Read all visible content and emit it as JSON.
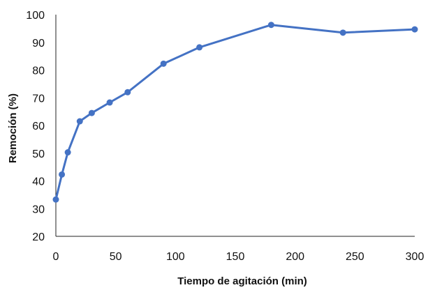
{
  "chart_data": {
    "type": "line",
    "title": "",
    "xlabel": "Tiempo de agitación (min)",
    "ylabel": "Remoción (%)",
    "xlim": [
      0,
      300
    ],
    "ylim": [
      20,
      100
    ],
    "x_ticks": [
      0,
      50,
      100,
      150,
      200,
      250,
      300
    ],
    "y_ticks": [
      20,
      30,
      40,
      50,
      60,
      70,
      80,
      90,
      100
    ],
    "grid": false,
    "legend": "none",
    "series": [
      {
        "color": "#4472C4",
        "marker": "circle",
        "points": [
          {
            "x": 0,
            "y": 33.3
          },
          {
            "x": 5,
            "y": 42.3
          },
          {
            "x": 10,
            "y": 50.3
          },
          {
            "x": 20,
            "y": 61.5
          },
          {
            "x": 30,
            "y": 64.5
          },
          {
            "x": 45,
            "y": 68.3
          },
          {
            "x": 60,
            "y": 72.0
          },
          {
            "x": 90,
            "y": 82.3
          },
          {
            "x": 120,
            "y": 88.2
          },
          {
            "x": 180,
            "y": 96.3
          },
          {
            "x": 240,
            "y": 93.5
          },
          {
            "x": 300,
            "y": 94.7
          }
        ]
      }
    ]
  }
}
